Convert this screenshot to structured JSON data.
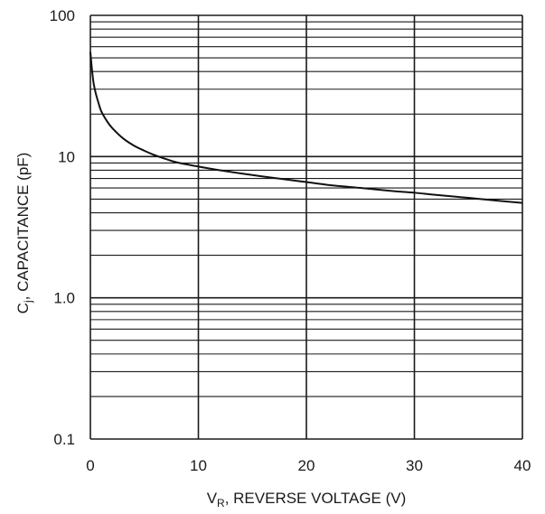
{
  "chart_data": {
    "type": "line",
    "title": "",
    "xlabel": "V",
    "xlabel_sub": "R",
    "xlabel_rest": ", REVERSE VOLTAGE (V)",
    "ylabel": "C",
    "ylabel_sub": "j",
    "ylabel_rest": ", CAPACITANCE (pF)",
    "xlim": [
      0,
      40
    ],
    "ylim": [
      0.1,
      100
    ],
    "yscale": "log",
    "grid": true,
    "x_ticks": [
      0,
      10,
      20,
      30,
      40
    ],
    "x_tick_labels": [
      "0",
      "10",
      "20",
      "30",
      "40"
    ],
    "y_ticks": [
      0.1,
      1,
      10,
      100
    ],
    "y_tick_labels": [
      "0.1",
      "1.0",
      "10",
      "100"
    ],
    "series": [
      {
        "x": [
          0,
          0.1,
          0.2,
          0.3,
          0.5,
          0.75,
          1,
          1.5,
          2,
          3,
          4,
          5,
          6,
          7,
          8,
          10,
          12,
          15,
          18,
          20,
          22,
          25,
          28,
          30,
          32,
          35,
          38,
          40
        ],
        "y": [
          55,
          45,
          38,
          33,
          28,
          24,
          21,
          18,
          16,
          13.5,
          12,
          11,
          10.2,
          9.6,
          9.1,
          8.5,
          8.0,
          7.4,
          6.9,
          6.6,
          6.3,
          6.0,
          5.7,
          5.55,
          5.35,
          5.1,
          4.85,
          4.7
        ]
      }
    ]
  }
}
